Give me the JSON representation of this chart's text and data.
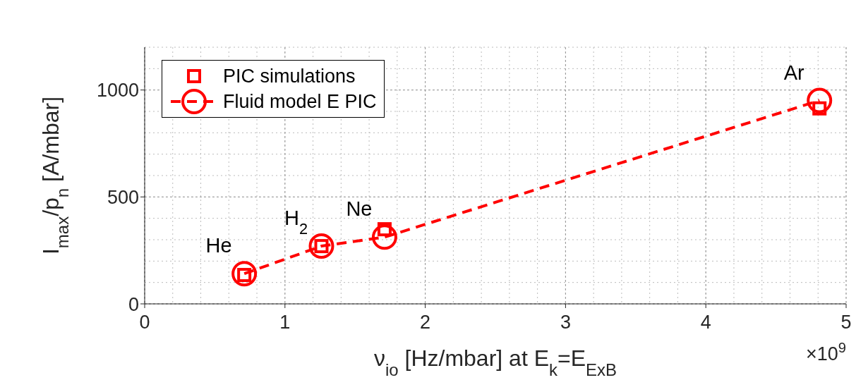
{
  "chart_data": {
    "type": "scatter",
    "xlabel": "ν$_{io}$ [Hz/mbar] at E$_{k}$=E$_{ExB}$",
    "ylabel": "I$_{max}$/p$_{n}$ [A/mbar]",
    "xlim": [
      0,
      5
    ],
    "xticks": [
      0,
      1,
      2,
      3,
      4,
      5
    ],
    "ylim": [
      0,
      1200
    ],
    "yticks": [
      0,
      500,
      1000
    ],
    "grid": true,
    "legend": "top left",
    "series": [
      {
        "name": "PIC simulations",
        "type": "scatter",
        "color": "#ff0000",
        "marker": "square",
        "x": [
          0.71,
          1.26,
          1.71,
          4.81
        ],
        "values": [
          135,
          270,
          349,
          914
        ]
      },
      {
        "name": "Fluid model E PIC",
        "type": "line",
        "color": "#ff0000",
        "marker": "circle",
        "line_style": "dashed",
        "x": [
          0.71,
          1.26,
          1.71,
          4.81
        ],
        "values": [
          141,
          270,
          312,
          951
        ]
      }
    ],
    "annotations": [
      {
        "text": "He",
        "x": 0.71,
        "y": 141
      },
      {
        "text": "H$_{2}$",
        "x": 1.26,
        "y": 270
      },
      {
        "text": "Ne",
        "x": 1.71,
        "y": 312
      },
      {
        "text": "Ar",
        "x": 4.81,
        "y": 951
      },
      "×10$^{9}$"
    ]
  }
}
